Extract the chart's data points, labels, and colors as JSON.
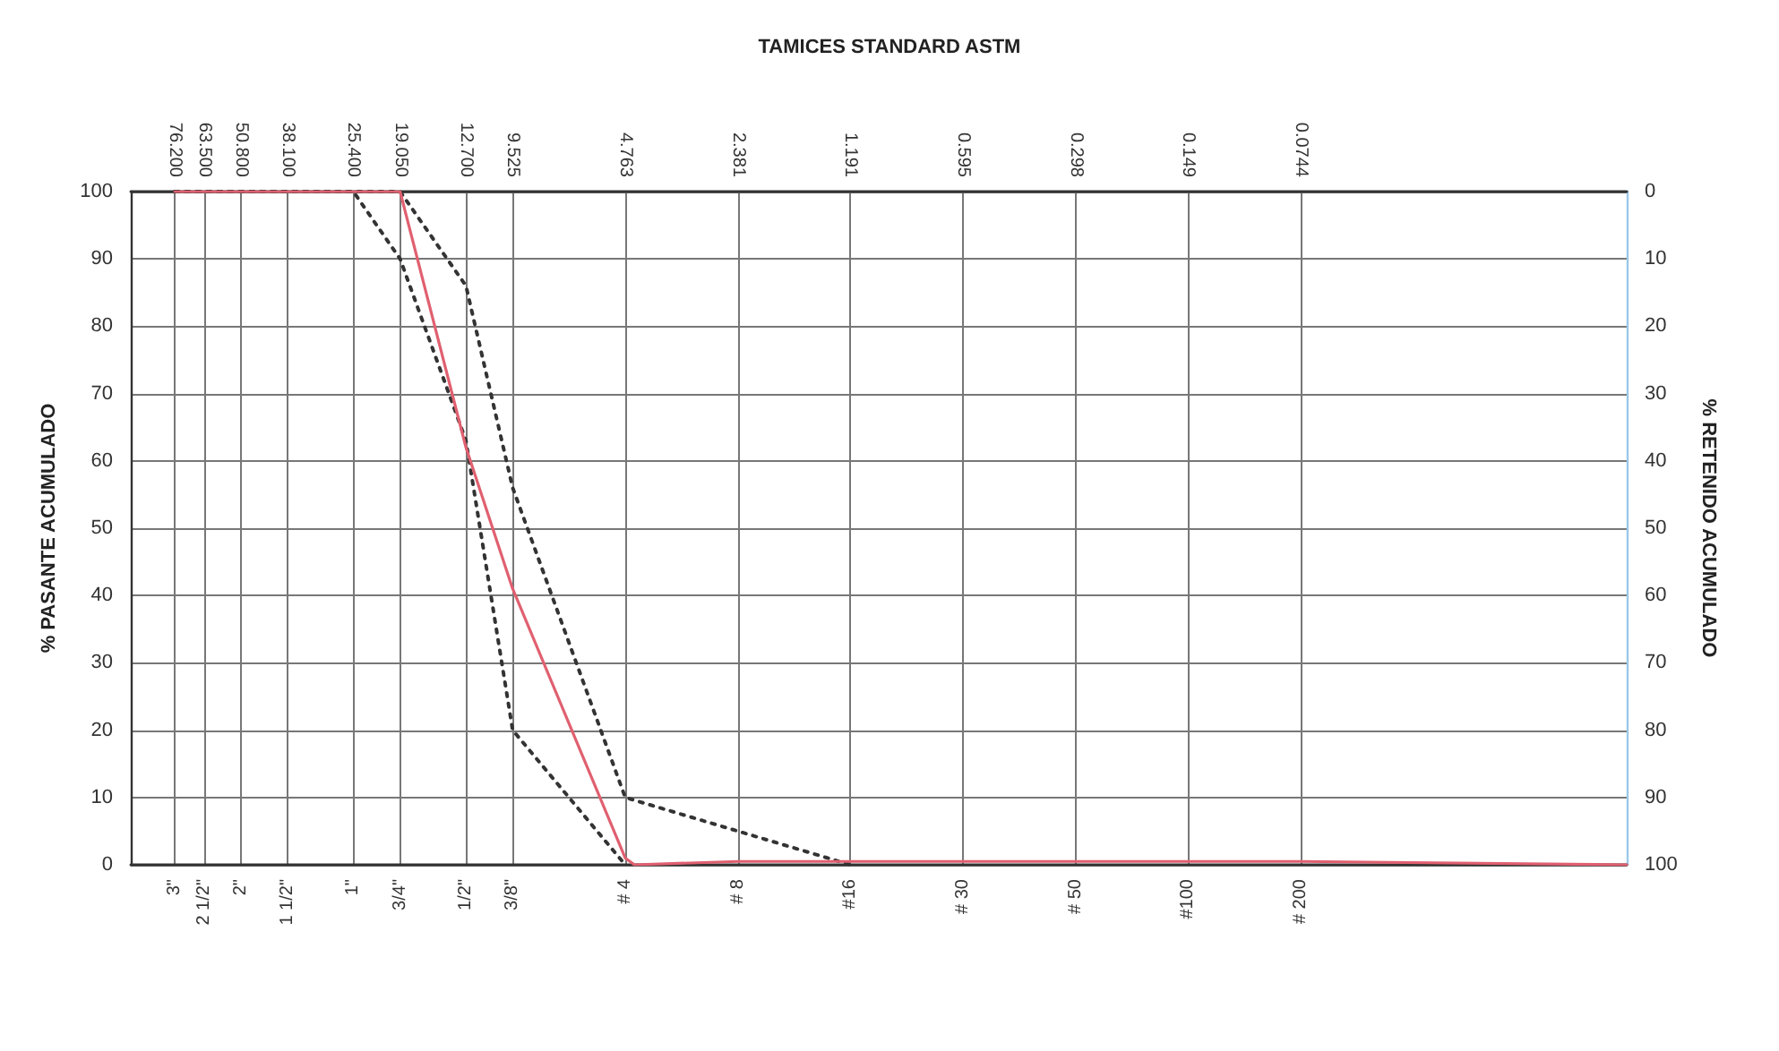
{
  "chart_data": {
    "type": "line",
    "title": "TAMICES STANDARD ASTM",
    "ylabel": "% PASANTE ACUMULADO",
    "y2label": "% RETENIDO ACUMULADO",
    "log": "x",
    "grid": true,
    "marker": "none",
    "xlim": [
      100,
      0.01
    ],
    "xticks": [
      {
        "value": 76.2,
        "label": "76.200"
      },
      {
        "value": 63.5,
        "label": "63.500"
      },
      {
        "value": 50.8,
        "label": "50.800"
      },
      {
        "value": 38.1,
        "label": "38.100"
      },
      {
        "value": 25.4,
        "label": "25.400"
      },
      {
        "value": 19.05,
        "label": "19.050"
      },
      {
        "value": 12.7,
        "label": "12.700"
      },
      {
        "value": 9.525,
        "label": "9.525"
      },
      {
        "value": 4.763,
        "label": "4.763"
      },
      {
        "value": 2.381,
        "label": "2.381"
      },
      {
        "value": 1.191,
        "label": "1.191"
      },
      {
        "value": 0.595,
        "label": "0.595"
      },
      {
        "value": 0.298,
        "label": "0.298"
      },
      {
        "value": 0.149,
        "label": "0.149"
      },
      {
        "value": 0.0744,
        "label": "0.0744"
      }
    ],
    "annotations": [
      "3\"",
      "2 1/2\"",
      "2\"",
      "1 1/2\"",
      "1\"",
      "3/4\"",
      "1/2\"",
      "3/8\"",
      "# 4",
      "# 8",
      "#16",
      "# 30",
      "# 50",
      "#100",
      "# 200"
    ],
    "ylim": [
      0,
      100
    ],
    "yticks": [
      0,
      10,
      20,
      30,
      40,
      50,
      60,
      70,
      80,
      90,
      100
    ],
    "y2lim": [
      100,
      0
    ],
    "y2ticks": [
      0,
      10,
      20,
      30,
      40,
      50,
      60,
      70,
      80,
      90,
      100
    ],
    "series": [
      {
        "color": "#333333",
        "line_style": "dotted",
        "x": [
          76.2,
          63.5,
          50.8,
          38.1,
          25.4,
          19.05,
          12.7,
          9.525,
          4.763
        ],
        "values": [
          100,
          100,
          100,
          100,
          100,
          90,
          63,
          20,
          0
        ]
      },
      {
        "color": "#333333",
        "line_style": "dotted",
        "x": [
          76.2,
          63.5,
          50.8,
          38.1,
          25.4,
          19.05,
          12.7,
          9.525,
          4.763,
          2.381,
          1.191
        ],
        "values": [
          100,
          100,
          100,
          100,
          100,
          100,
          86,
          56,
          10,
          5,
          0
        ]
      },
      {
        "color": "#e06070",
        "line_style": "solid",
        "x": [
          76.2,
          63.5,
          50.8,
          38.1,
          25.4,
          19.05,
          12.7,
          9.525,
          4.763,
          4.5,
          2.381,
          1.191,
          0.595,
          0.298,
          0.149,
          0.0744,
          0.01
        ],
        "values": [
          100,
          100,
          100,
          100,
          100,
          100,
          62,
          41,
          1,
          0,
          0.5,
          0.5,
          0.5,
          0.5,
          0.5,
          0.5,
          0
        ]
      }
    ]
  }
}
